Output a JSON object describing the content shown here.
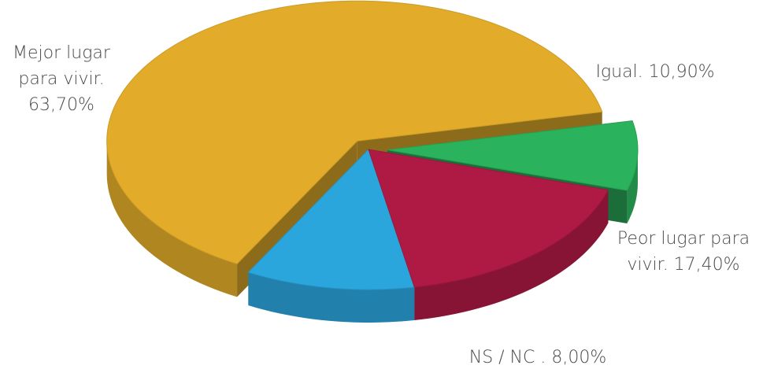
{
  "chart_data": {
    "type": "pie",
    "title": "",
    "series": [
      {
        "label_lines": [
          "Mejor lugar",
          "para vivir.",
          "63,70%"
        ],
        "value": 63.7,
        "color": "#e2ac2a",
        "exploded": true
      },
      {
        "label_lines": [
          "Igual. 10,90%"
        ],
        "value": 10.9,
        "color": "#2aa6dc",
        "exploded": false
      },
      {
        "label_lines": [
          "Peor lugar para",
          "vivir. 17,40%"
        ],
        "value": 17.4,
        "color": "#ae1a44",
        "exploded": false
      },
      {
        "label_lines": [
          "NS / NC . 8,00%"
        ],
        "value": 8.0,
        "color": "#2bb25c",
        "exploded": true
      }
    ]
  }
}
